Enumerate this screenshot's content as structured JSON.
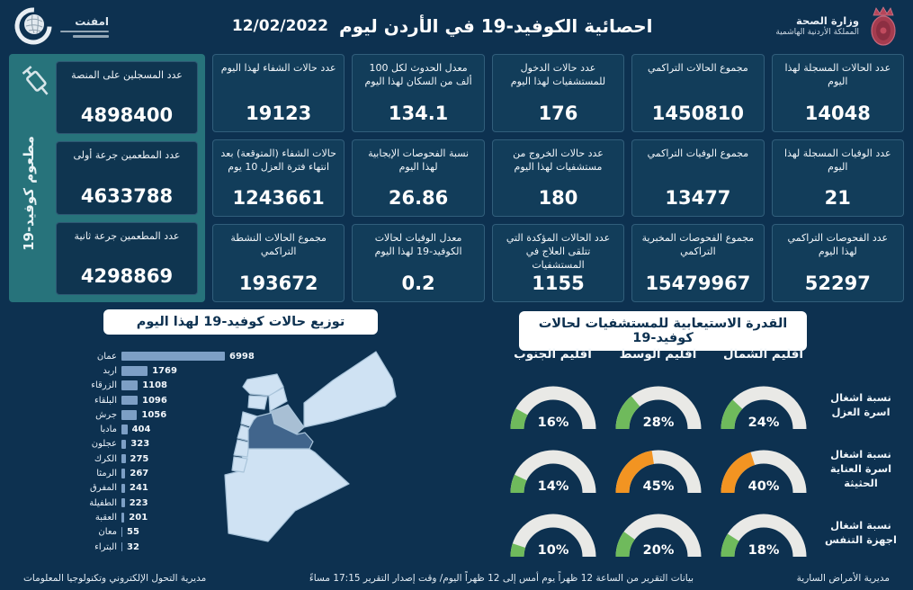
{
  "header": {
    "title": "احصائية الكوفيد-19 في الأردن ليوم",
    "date": "12/02/2022",
    "logo_text": "امفنت",
    "moh": {
      "line1": "وزارة الصحة",
      "line2": "المملكة الأردنية الهاشمية"
    }
  },
  "vaccination": {
    "panel_label": "مطعوم كوفيد-19",
    "cards": [
      {
        "label": "عدد المسجلين على المنصة",
        "value": "4898400"
      },
      {
        "label": "عدد المطعمين جرعة أولى",
        "value": "4633788"
      },
      {
        "label": "عدد المطعمين جرعة ثانية",
        "value": "4298869"
      }
    ]
  },
  "stats_columns": [
    {
      "cards": [
        {
          "label": "عدد الحالات المسجلة لهذا اليوم",
          "value": "14048"
        },
        {
          "label": "عدد الوفيات المسجلة لهذا اليوم",
          "value": "21"
        },
        {
          "label": "عدد الفحوصات التراكمي لهذا اليوم",
          "value": "52297"
        }
      ]
    },
    {
      "cards": [
        {
          "label": "مجموع الحالات التراكمي",
          "value": "1450810"
        },
        {
          "label": "مجموع الوفيات التراكمي",
          "value": "13477"
        },
        {
          "label": "مجموع الفحوصات المخبرية التراكمي",
          "value": "15479967"
        }
      ]
    },
    {
      "cards": [
        {
          "label": "عدد حالات الدخول للمستشفيات لهذا اليوم",
          "value": "176"
        },
        {
          "label": "عدد حالات الخروج من مستشفيات لهذا اليوم",
          "value": "180"
        },
        {
          "label": "عدد الحالات المؤكدة التي تتلقى العلاج في المستشفيات",
          "value": "1155"
        }
      ]
    },
    {
      "cards": [
        {
          "label": "معدل الحدوث لكل 100 ألف من السكان لهذا اليوم",
          "value": "134.1"
        },
        {
          "label": "نسبة الفحوصات الإيجابية لهذا اليوم",
          "value": "26.86"
        },
        {
          "label": "معدل الوفيات لحالات الكوفيد-19 لهذا اليوم",
          "value": "0.2"
        }
      ]
    },
    {
      "cards": [
        {
          "label": "عدد حالات الشفاء لهذا اليوم",
          "value": "19123"
        },
        {
          "label": "حالات الشفاء (المتوقعة) بعد انتهاء فترة العزل 10 يوم",
          "value": "1243661"
        },
        {
          "label": "مجموع الحالات النشطة التراكمي",
          "value": "193672"
        }
      ]
    }
  ],
  "chart_data": {
    "type": "bar",
    "orientation": "horizontal",
    "title": "توزيع حالات كوفيد-19 لهذا اليوم",
    "categories": [
      "عمان",
      "اربد",
      "الزرقاء",
      "البلقاء",
      "جرش",
      "مادبا",
      "عجلون",
      "الكرك",
      "الرمثا",
      "المفرق",
      "الطفيلة",
      "العقبة",
      "معان",
      "البتراء"
    ],
    "values": [
      6998,
      1769,
      1108,
      1096,
      1056,
      404,
      323,
      275,
      267,
      241,
      223,
      201,
      55,
      32
    ],
    "xlim": [
      0,
      7000
    ],
    "bar_color": "#7d9fc5"
  },
  "gauges": {
    "title": "القدرة الاستيعابية للمستشفيات لحالات كوفيد-19",
    "region_headers": [
      "اقليم الشمال",
      "اقليم الوسط",
      "اقليم الجنوب"
    ],
    "rows": [
      {
        "label": "نسبة اشغال اسرة العزل",
        "values": [
          24,
          28,
          16
        ],
        "colors": [
          "green",
          "green",
          "green"
        ]
      },
      {
        "label": "نسبة اشغال اسرة العناية الحثيثة",
        "values": [
          40,
          45,
          14
        ],
        "colors": [
          "orange",
          "orange",
          "green"
        ]
      },
      {
        "label": "نسبة اشغال اجهزة التنفس",
        "values": [
          18,
          20,
          10
        ],
        "colors": [
          "green",
          "green",
          "green"
        ]
      }
    ],
    "green": "#6fba5c",
    "orange": "#f29422"
  },
  "footer": {
    "right": "مديرية الأمراض السارية",
    "center": "بيانات التقرير من الساعة 12 ظهراً يوم أمس إلى 12 ظهراً اليوم/ وقت إصدار التقرير 17:15 مساءً",
    "left": "مديرية التحول الإلكتروني وتكنولوجيا المعلومات"
  },
  "colors": {
    "background": "#0d3150",
    "card": "#123d5a",
    "teal_panel": "#27737b",
    "map_light": "#cfe2f3",
    "map_mid": "#a8bfd4",
    "map_dark": "#41658c"
  }
}
